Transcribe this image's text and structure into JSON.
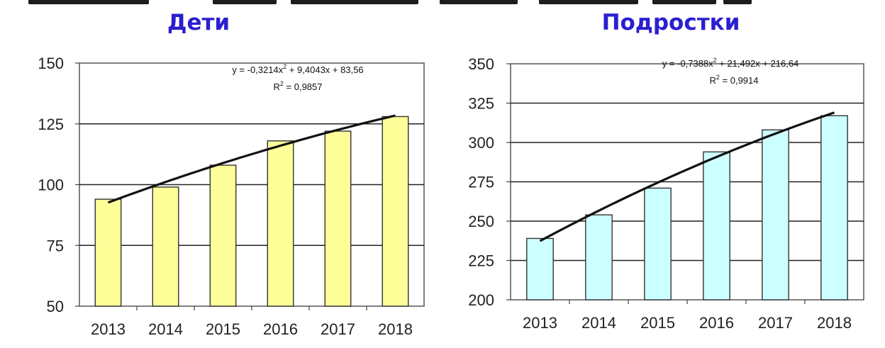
{
  "chart_data": [
    {
      "type": "bar",
      "title": "Дети",
      "categories": [
        "2013",
        "2014",
        "2015",
        "2016",
        "2017",
        "2018"
      ],
      "values": [
        94,
        99,
        108,
        118,
        122,
        128
      ],
      "ylim": [
        50,
        150
      ],
      "yticks": [
        "50",
        "75",
        "100",
        "125",
        "150"
      ],
      "grid": true,
      "bar_color": "#ffff99",
      "trendline": {
        "type": "polynomial-2",
        "equation": "y = -0,3214x",
        "equation_sup": "2",
        "equation_rest": " + 9,4043x + 83,56",
        "r2_prefix": "R",
        "r2_sup": "2",
        "r2_rest": " = 0,9857"
      }
    },
    {
      "type": "bar",
      "title": "Подростки",
      "categories": [
        "2013",
        "2014",
        "2015",
        "2016",
        "2017",
        "2018"
      ],
      "values": [
        239,
        254,
        271,
        294,
        308,
        317
      ],
      "ylim": [
        200,
        350
      ],
      "yticks": [
        "200",
        "225",
        "250",
        "275",
        "300",
        "325",
        "350"
      ],
      "grid": true,
      "bar_color": "#ccffff",
      "trendline": {
        "type": "polynomial-2",
        "equation": "y = -0,7388x",
        "equation_sup": "2",
        "equation_rest": " + 21,492x + 216,64",
        "r2_prefix": "R",
        "r2_sup": "2",
        "r2_rest": " = 0,9914"
      }
    }
  ]
}
